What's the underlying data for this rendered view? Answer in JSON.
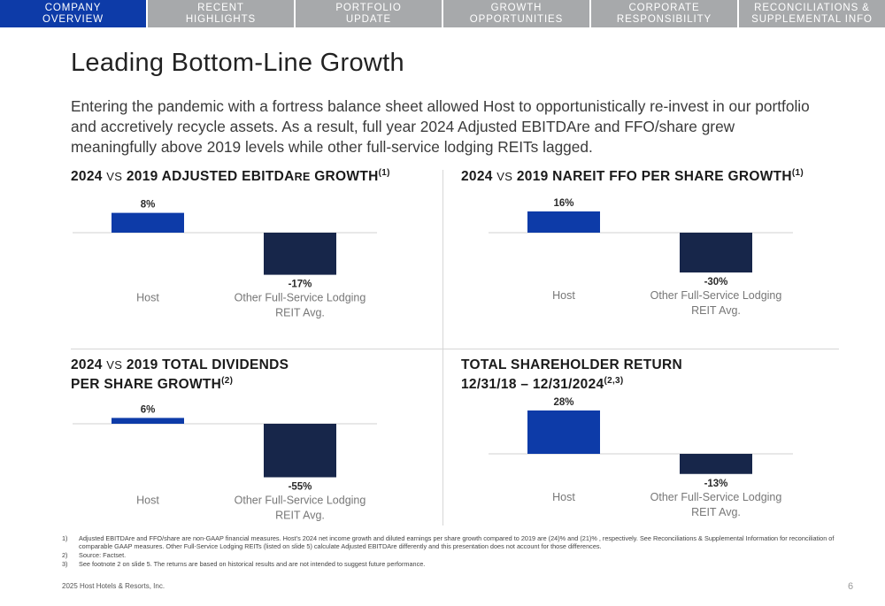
{
  "nav": {
    "tabs": [
      {
        "line1": "COMPANY",
        "line2": "OVERVIEW",
        "active": true
      },
      {
        "line1": "RECENT",
        "line2": "HIGHLIGHTS",
        "active": false
      },
      {
        "line1": "PORTFOLIO",
        "line2": "UPDATE",
        "active": false
      },
      {
        "line1": "GROWTH",
        "line2": "OPPORTUNITIES",
        "active": false
      },
      {
        "line1": "CORPORATE",
        "line2": "RESPONSIBILITY",
        "active": false
      },
      {
        "line1": "RECONCILIATIONS &",
        "line2": "SUPPLEMENTAL INFO",
        "active": false
      }
    ]
  },
  "title": "Leading Bottom-Line Growth",
  "intro": "Entering the pandemic with a fortress balance sheet allowed Host to opportunistically re-invest in our portfolio and accretively recycle assets. As a result, full year 2024 Adjusted EBITDAre and FFO/share grew meaningfully above 2019 levels while other full-service lodging REITs lagged.",
  "panels": {
    "ebitda": {
      "p1": "2024",
      "vs": "VS",
      "p2": "2019 ADJUSTED EBITDA",
      "p3": "RE",
      "p4": " GROWTH",
      "sup": "(1)"
    },
    "ffo": {
      "p1": "2024",
      "vs": "VS",
      "p2": "2019 NAREIT FFO PER SHARE GROWTH",
      "sup": "(1)"
    },
    "dividends": {
      "p1": "2024",
      "vs": "VS",
      "p2": "2019 TOTAL DIVIDENDS",
      "line2": "PER SHARE GROWTH",
      "sup": "(2)"
    },
    "tsr": {
      "line1": "TOTAL SHAREHOLDER RETURN",
      "line2": "12/31/18 – 12/31/2024",
      "sup": "(2,3)"
    }
  },
  "colors": {
    "host": "#0d3ba8",
    "peer": "#17264a",
    "nav_active": "#0d3ba8",
    "nav_inactive": "#a7a9ab"
  },
  "chart_data": [
    {
      "type": "bar",
      "categories": [
        "Host",
        "Other Full-Service Lodging REIT Avg."
      ],
      "values": [
        8,
        -17
      ],
      "labels": [
        "8%",
        "-17%"
      ],
      "cat_lines": [
        [
          "Host"
        ],
        [
          "Other Full-Service Lodging",
          "REIT Avg."
        ]
      ]
    },
    {
      "type": "bar",
      "categories": [
        "Host",
        "Other Full-Service Lodging REIT Avg."
      ],
      "values": [
        16,
        -30
      ],
      "labels": [
        "16%",
        "-30%"
      ],
      "cat_lines": [
        [
          "Host"
        ],
        [
          "Other Full-Service Lodging",
          "REIT Avg."
        ]
      ]
    },
    {
      "type": "bar",
      "categories": [
        "Host",
        "Other Full-Service Lodging REIT Avg."
      ],
      "values": [
        6,
        -55
      ],
      "labels": [
        "6%",
        "-55%"
      ],
      "cat_lines": [
        [
          "Host"
        ],
        [
          "Other Full-Service Lodging",
          "REIT Avg."
        ]
      ]
    },
    {
      "type": "bar",
      "categories": [
        "Host",
        "Other Full-Service Lodging REIT Avg."
      ],
      "values": [
        28,
        -13
      ],
      "labels": [
        "28%",
        "-13%"
      ],
      "cat_lines": [
        [
          "Host"
        ],
        [
          "Other Full-Service Lodging",
          "REIT Avg."
        ]
      ]
    }
  ],
  "footnotes": [
    {
      "num": "1)",
      "text": "Adjusted EBITDAre and FFO/share are non-GAAP financial measures. Host’s 2024 net income growth and diluted earnings per share growth compared to 2019 are (24)% and (21)% , respectively. See Reconciliations & Supplemental Information for reconciliation of comparable GAAP measures. Other Full-Service Lodging REITs (listed on slide 5) calculate Adjusted EBITDAre differently and this presentation does not account for those differences."
    },
    {
      "num": "2)",
      "text": "Source: Factset."
    },
    {
      "num": "3)",
      "text": "See footnote 2 on slide 5. The returns are based on historical results and are not intended to suggest future performance."
    }
  ],
  "copyright": "2025 Host Hotels & Resorts, Inc.",
  "page_number": "6"
}
